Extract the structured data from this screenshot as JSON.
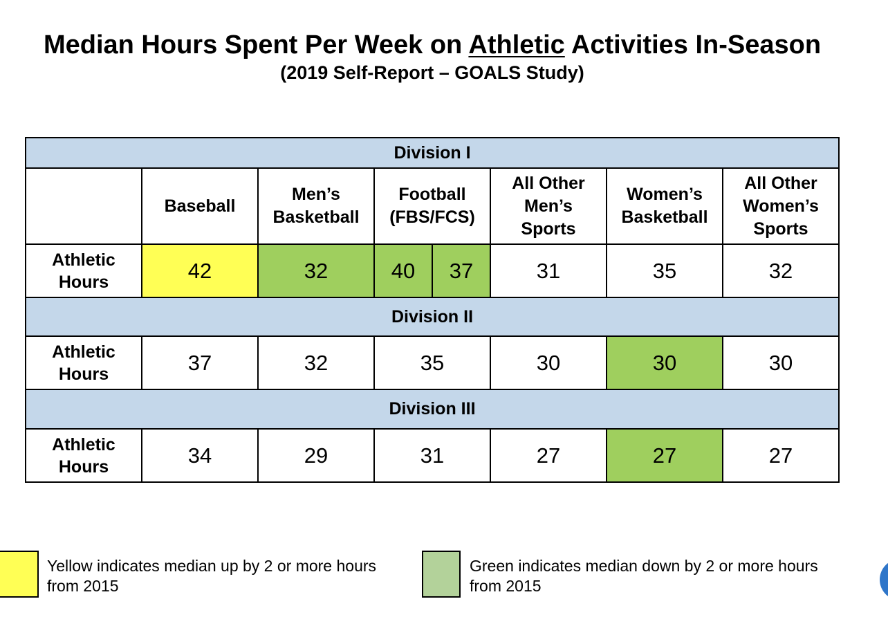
{
  "title_pre": "Median Hours Spent Per Week on ",
  "title_emph": "Athletic",
  "title_post": " Activities In-Season",
  "subtitle": "(2019 Self-Report – GOALS Study)",
  "colors": {
    "header_band": "#c4d7ea",
    "up_yellow": "#ffff55",
    "down_green": "#9fcf5e",
    "legend_green": "#b3d29a"
  },
  "chart_data": {
    "type": "table",
    "columns": [
      "Baseball",
      "Men’s Basketball",
      "Football (FBS/FCS)",
      "All Other Men’s Sports",
      "Women’s Basketball",
      "All Other Women’s Sports"
    ],
    "column_header_lines": [
      [
        "Baseball"
      ],
      [
        "Men’s",
        "Basketball"
      ],
      [
        "Football",
        "(FBS/FCS)"
      ],
      [
        "All Other",
        "Men’s",
        "Sports"
      ],
      [
        "Women’s",
        "Basketball"
      ],
      [
        "All Other",
        "Women’s",
        "Sports"
      ]
    ],
    "row_label_lines": [
      "Athletic",
      "Hours"
    ],
    "divisions": [
      {
        "name": "Division I",
        "values": {
          "baseball": "42",
          "mens_basketball": "32",
          "football_fbs": "40",
          "football_fcs": "37",
          "other_mens": "31",
          "womens_basketball": "35",
          "other_womens": "32"
        },
        "highlights": {
          "baseball": "up",
          "mens_basketball": "down",
          "football_fbs": "down",
          "football_fcs": "down"
        }
      },
      {
        "name": "Division II",
        "values": {
          "baseball": "37",
          "mens_basketball": "32",
          "football": "35",
          "other_mens": "30",
          "womens_basketball": "30",
          "other_womens": "30"
        },
        "highlights": {
          "womens_basketball": "down"
        }
      },
      {
        "name": "Division III",
        "values": {
          "baseball": "34",
          "mens_basketball": "29",
          "football": "31",
          "other_mens": "27",
          "womens_basketball": "27",
          "other_womens": "27"
        },
        "highlights": {
          "womens_basketball": "down"
        }
      }
    ]
  },
  "legend": {
    "yellow_line1": "Yellow indicates median up by 2 or more hours",
    "yellow_line2": "from 2015",
    "green_line1": "Green indicates median down by 2 or more hours",
    "green_line2": "from 2015"
  }
}
